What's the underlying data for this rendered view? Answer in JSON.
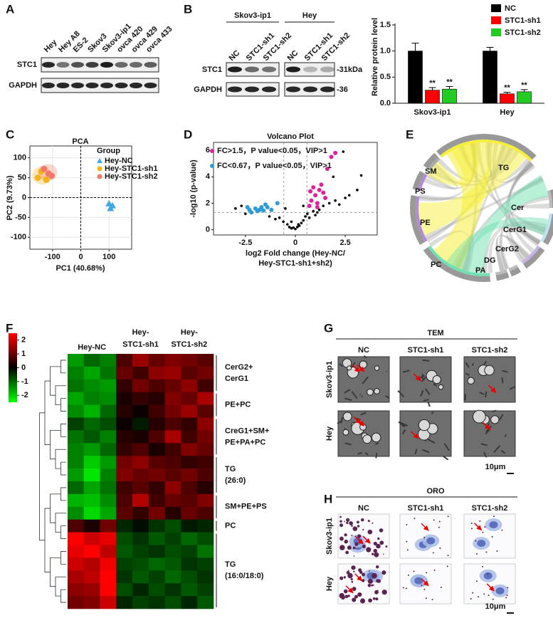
{
  "panel_labels": [
    "A",
    "B",
    "C",
    "D",
    "E",
    "F",
    "G",
    "H"
  ],
  "blot_a": {
    "lanes": [
      "Hey",
      "Hey A8",
      "ES-2",
      "Skov3",
      "Skov3-ip1",
      "ovca 420",
      "ovca 429",
      "ovca 433"
    ],
    "rows": [
      "STC1",
      "GAPDH"
    ]
  },
  "blot_b": {
    "groups": [
      "Skov3-ip1",
      "Hey"
    ],
    "lanes": [
      "NC",
      "STC1-sh1",
      "STC1-sh2"
    ],
    "rows": [
      "STC1",
      "GAPDH"
    ],
    "markers": [
      "-31kDa",
      "-36"
    ]
  },
  "chart_data": [
    {
      "type": "bar",
      "y_label": "Relative protein level",
      "categories": [
        "Skov3-ip1",
        "Hey"
      ],
      "series": [
        {
          "name": "NC",
          "color": "#000000",
          "values": [
            1.0,
            1.0
          ],
          "errors": [
            0.15,
            0.07
          ]
        },
        {
          "name": "STC1-sh1",
          "color": "#ff0000",
          "values": [
            0.25,
            0.18
          ],
          "errors": [
            0.05,
            0.03
          ],
          "significance": [
            "**",
            "**"
          ]
        },
        {
          "name": "STC1-sh2",
          "color": "#22cc22",
          "values": [
            0.27,
            0.22
          ],
          "errors": [
            0.05,
            0.04
          ],
          "significance": [
            "**",
            "**"
          ]
        }
      ],
      "ylim": [
        0,
        1.5
      ],
      "yticks": [
        {
          "value": 0,
          "label": "0.0"
        },
        {
          "value": 0.5,
          "label": "0.5"
        },
        {
          "value": 1,
          "label": "1.0"
        },
        {
          "value": 1.5,
          "label": "1.5"
        }
      ],
      "legend": "top-right"
    },
    {
      "type": "scatter",
      "title": "PCA",
      "x_label": "PC1 (40.68%)",
      "y_label": "PC2 (9.73%)",
      "legend_title": "Group",
      "series": [
        {
          "name": "Hey-NC",
          "color": "#3fa9e0",
          "marker": "triangle",
          "x": [
            100,
            105,
            112
          ],
          "values": [
            -15,
            -27,
            -20
          ]
        },
        {
          "name": "Hey-STC1-sh1",
          "color": "#f5b31b",
          "marker": "circle",
          "x": [
            -152,
            -140,
            -122
          ],
          "values": [
            50,
            66,
            45
          ]
        },
        {
          "name": "Hey-STC1-sh2",
          "color": "#f07a6a",
          "marker": "circle",
          "x": [
            -130,
            -114,
            -103
          ],
          "values": [
            72,
            60,
            55
          ]
        }
      ],
      "xlim": [
        -180,
        180
      ],
      "xticks": [
        -100,
        0,
        100
      ],
      "ylim": [
        -130,
        130
      ],
      "yticks": [
        100,
        50,
        0,
        -50,
        -100
      ],
      "grid": true
    },
    {
      "type": "scatter",
      "title": "Volcano Plot",
      "x_label": [
        "log2 Fold change (Hey-NC/",
        "Hey-STC1-sh1+sh2)"
      ],
      "y_label": "-log10 (p-value)",
      "series": [
        {
          "name": "FC>1.5，P value<0.05，VIP>1",
          "color": "#e0219a",
          "marker": "circle",
          "x": [
            0.7,
            0.8,
            1.0,
            1.1,
            1.2,
            1.3,
            1.4,
            1.5,
            1.6,
            1.8,
            2.0,
            0.9,
            1.1,
            0.75
          ],
          "values": [
            1.8,
            2.2,
            2.6,
            2.0,
            3.0,
            3.4,
            2.8,
            2.4,
            4.6,
            5.5,
            5.8,
            3.2,
            1.7,
            2.9
          ]
        },
        {
          "name": "FC<0.67，P value<0.05，VIP>1",
          "color": "#2f9bd6",
          "marker": "circle",
          "x": [
            -2.3,
            -2.2,
            -2.0,
            -1.9,
            -1.8,
            -1.7,
            -1.6,
            -1.5,
            -1.4,
            -1.2,
            -0.9,
            -2.4
          ],
          "values": [
            1.5,
            1.3,
            1.6,
            1.4,
            1.5,
            1.7,
            1.45,
            1.9,
            1.7,
            1.5,
            2.0,
            1.7
          ]
        },
        {
          "color": "#000000",
          "marker": "dot",
          "x": [
            -3.0,
            -2.7,
            -2.5,
            -1.3,
            -1.0,
            -0.8,
            -0.6,
            -0.4,
            -0.3,
            -0.2,
            -0.1,
            0,
            0.1,
            0.2,
            0.3,
            0.4,
            0.5,
            0.6,
            0.7,
            0.9,
            1.0,
            1.2,
            1.4,
            1.7,
            2.0,
            2.2,
            2.5,
            2.7,
            3.1,
            3.3,
            -0.5,
            0.4,
            1.1,
            2.4,
            1.9,
            -0.2,
            0.15
          ],
          "values": [
            1.6,
            1.8,
            1.2,
            1.0,
            0.8,
            0.9,
            0.6,
            0.4,
            0.2,
            0.1,
            0.15,
            0.05,
            0.2,
            0.3,
            0.5,
            0.7,
            1.0,
            1.2,
            0.9,
            1.4,
            1.1,
            1.5,
            1.8,
            2.0,
            2.2,
            1.9,
            2.4,
            2.6,
            3.0,
            4.1,
            1.6,
            1.8,
            1.3,
            5.9,
            4.0,
            0.6,
            0.4
          ]
        }
      ],
      "xlim": [
        -4.1,
        4.1
      ],
      "xticks": [
        -2.5,
        0,
        2.5
      ],
      "ylim": [
        -0.4,
        6.6
      ],
      "yticks": [
        0,
        2,
        4,
        6
      ],
      "hlines": [
        1.3
      ],
      "vlines": [
        -0.58,
        0.58
      ]
    },
    {
      "type": "heatmap",
      "column_groups": [
        [
          "Hey-NC"
        ],
        [
          "Hey-",
          "STC1-sh1"
        ],
        [
          "Hey-",
          "STC1-sh2"
        ]
      ],
      "row_groups": [
        [
          "CerG2+",
          "CerG1"
        ],
        [
          "PE+PC"
        ],
        [
          "CreG1+SM+",
          "PE+PA+PC"
        ],
        [
          "TG",
          "(26:0)"
        ],
        [
          "SM+PE+PS"
        ],
        [
          "PC"
        ],
        [
          "TG",
          "(16:0/18:0)"
        ]
      ],
      "values": [
        [
          -1.2,
          -0.8,
          -1.0,
          0.6,
          1.2,
          0.8,
          1.0,
          0.9,
          0.7
        ],
        [
          -1.0,
          -1.3,
          -0.9,
          0.8,
          0.5,
          1.1,
          1.2,
          0.7,
          0.9
        ],
        [
          -0.9,
          -1.1,
          -1.2,
          0.4,
          0.9,
          0.6,
          0.8,
          1.1,
          0.5
        ],
        [
          -1.3,
          -1.0,
          -1.1,
          0.2,
          0.4,
          0.3,
          1.0,
          0.8,
          1.3
        ],
        [
          -1.1,
          -1.4,
          -0.8,
          0.3,
          0.1,
          0.5,
          0.9,
          1.2,
          0.7
        ],
        [
          -0.5,
          -0.8,
          -0.6,
          0.1,
          -0.2,
          0.3,
          0.6,
          0.4,
          1.1
        ],
        [
          -0.9,
          -0.7,
          -1.0,
          0.3,
          0.2,
          0.6,
          1.3,
          0.5,
          0.9
        ],
        [
          -1.0,
          -1.2,
          -0.8,
          0.4,
          0.6,
          0.2,
          0.5,
          1.0,
          0.8
        ],
        [
          -1.0,
          -1.6,
          -1.2,
          0.9,
          1.1,
          0.7,
          0.6,
          0.4,
          0.5
        ],
        [
          -1.2,
          -1.8,
          -1.0,
          1.0,
          0.8,
          0.9,
          0.7,
          0.9,
          0.6
        ],
        [
          -0.8,
          -1.3,
          -0.9,
          0.5,
          0.7,
          0.4,
          1.1,
          0.6,
          0.3
        ],
        [
          -1.4,
          -1.5,
          -1.1,
          0.6,
          1.4,
          0.5,
          0.8,
          0.7,
          1.0
        ],
        [
          -1.1,
          -1.7,
          -1.3,
          0.7,
          0.4,
          0.9,
          0.3,
          0.8,
          0.6
        ],
        [
          0.6,
          0.2,
          0.9,
          -0.3,
          -0.1,
          -0.4,
          -0.6,
          -0.2,
          -0.3
        ],
        [
          2.0,
          1.6,
          1.8,
          -0.6,
          -0.4,
          -0.7,
          -0.5,
          -0.8,
          -0.6
        ],
        [
          1.8,
          2.0,
          1.5,
          -0.7,
          -0.5,
          -0.4,
          -0.6,
          -0.5,
          -0.9
        ],
        [
          1.6,
          1.4,
          1.9,
          -0.5,
          -0.6,
          -0.8,
          -0.7,
          -0.4,
          -0.5
        ],
        [
          1.3,
          1.5,
          2.2,
          -0.4,
          -0.7,
          -0.5,
          -0.8,
          -0.6,
          -0.4
        ],
        [
          1.1,
          1.2,
          2.0,
          -0.6,
          -0.3,
          -0.6,
          -0.4,
          -0.7,
          -0.5
        ],
        [
          0.9,
          1.0,
          1.6,
          -0.3,
          -0.5,
          -0.4,
          -0.6,
          -0.3,
          -0.7
        ]
      ],
      "colorbar_ticks": [
        2,
        1,
        0,
        -1,
        -2
      ],
      "colorbar_lim": [
        -2.5,
        2.5
      ]
    }
  ],
  "chord": {
    "labels": [
      "TG",
      "SM",
      "PS",
      "PE",
      "PC",
      "PA",
      "DG",
      "CerG2",
      "CerG1",
      "Cer"
    ]
  },
  "tem": {
    "title": "TEM",
    "columns": [
      "NC",
      "STC1-sh1",
      "STC1-sh2"
    ],
    "rows": [
      "Skov3-ip1",
      "Hey"
    ],
    "scale": "10μm"
  },
  "oro": {
    "title": "ORO",
    "columns": [
      "NC",
      "STC1-sh1",
      "STC1-sh2"
    ],
    "rows": [
      "Skov3-ip1",
      "Hey"
    ],
    "scale": "10μm"
  }
}
